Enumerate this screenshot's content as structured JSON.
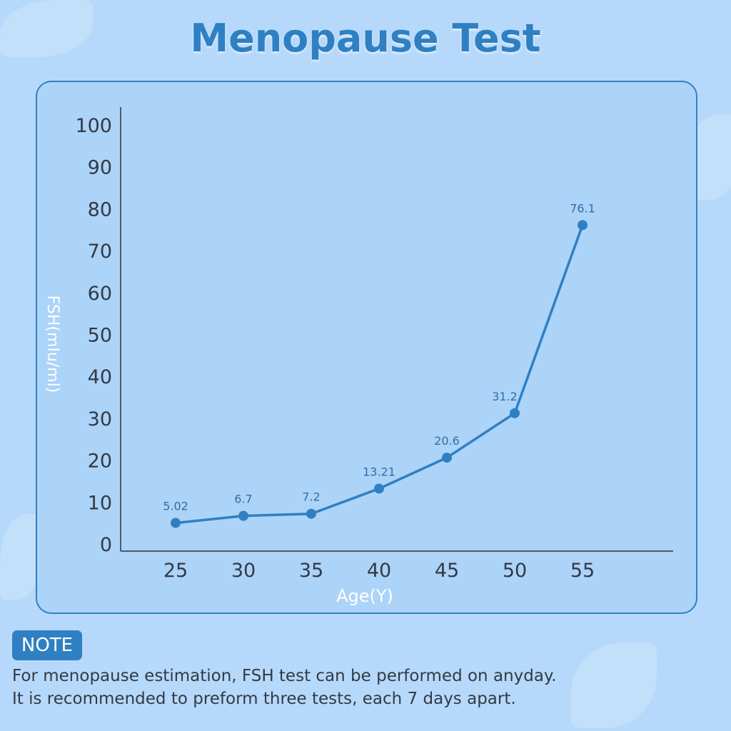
{
  "title": "Menopause Test",
  "chart_data": {
    "type": "line",
    "title": "Menopause Test",
    "xlabel": "Age(Y)",
    "ylabel": "FSH(mIu/ml)",
    "x": [
      25,
      30,
      35,
      40,
      45,
      50,
      55
    ],
    "values": [
      5.02,
      6.7,
      7.2,
      13.21,
      20.6,
      31.2,
      76.1
    ],
    "data_labels": [
      "5.02",
      "6.7",
      "7.2",
      "13.21",
      "20.6",
      "31.2",
      "76.1"
    ],
    "yticks": [
      "0",
      "10",
      "20",
      "30",
      "40",
      "50",
      "60",
      "70",
      "80",
      "90",
      "100"
    ],
    "xticks": [
      "25",
      "30",
      "35",
      "40",
      "45",
      "50",
      "55"
    ],
    "ylim": [
      0,
      100
    ],
    "grid": false,
    "line_color": "#2f80c2"
  },
  "note": {
    "badge": "NOTE",
    "lines": [
      "For menopause estimation, FSH test can be performed on anyday.",
      "It is recommended to preform three tests, each 7 days apart."
    ]
  }
}
